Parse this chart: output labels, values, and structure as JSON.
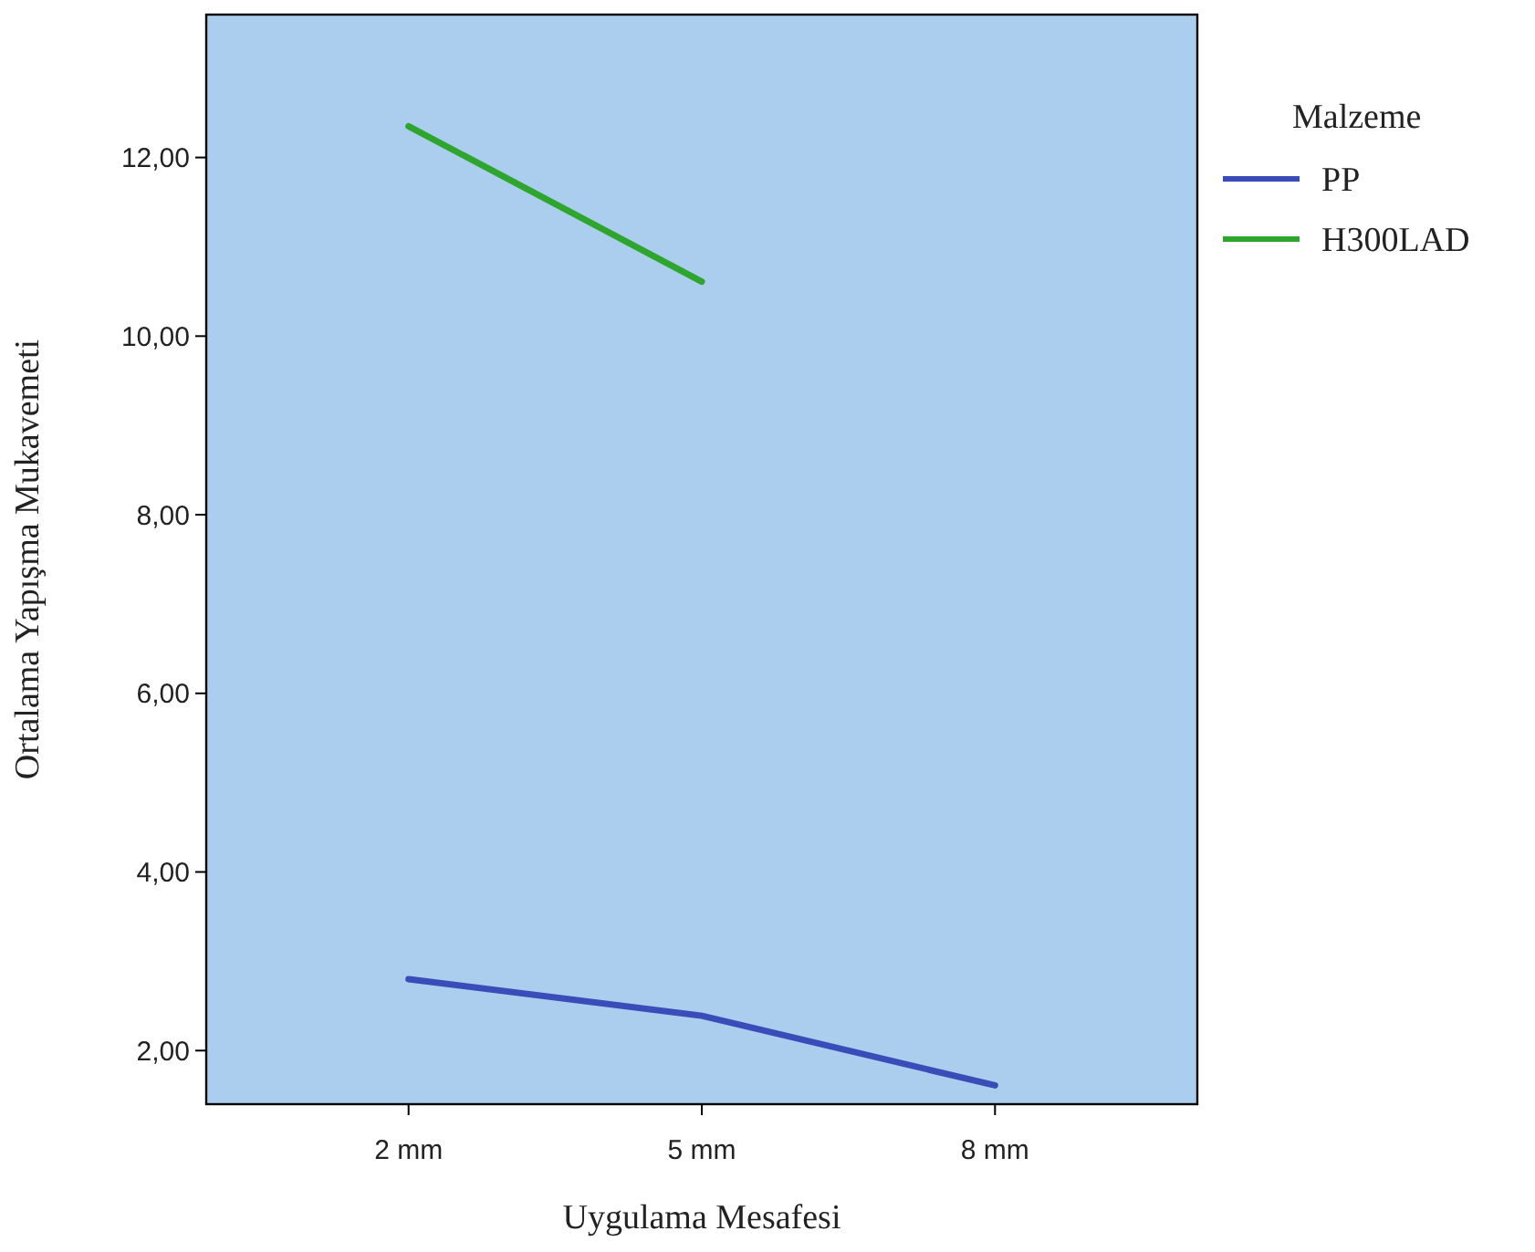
{
  "chart_data": {
    "type": "line",
    "xlabel": "Uygulama Mesafesi",
    "ylabel": "Ortalama Yapışma Mukavemeti",
    "legend_title": "Malzeme",
    "legend": "right",
    "grid": false,
    "categories": [
      "2 mm",
      "5 mm",
      "8 mm"
    ],
    "ylim": [
      1.4,
      13.6
    ],
    "yticks": [
      {
        "value": 2,
        "label": "2,00"
      },
      {
        "value": 4,
        "label": "4,00"
      },
      {
        "value": 6,
        "label": "6,00"
      },
      {
        "value": 8,
        "label": "8,00"
      },
      {
        "value": 10,
        "label": "10,00"
      },
      {
        "value": 12,
        "label": "12,00"
      }
    ],
    "series": [
      {
        "name": "PP",
        "color": "#3a4cb8",
        "values": [
          2.8,
          2.39,
          1.61
        ]
      },
      {
        "name": "H300LAD",
        "color": "#2ea62e",
        "values": [
          12.35,
          10.61,
          null
        ]
      }
    ]
  }
}
